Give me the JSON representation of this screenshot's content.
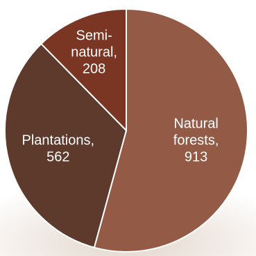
{
  "chart_data": {
    "type": "pie",
    "slices": [
      {
        "label_lines": [
          "Natural",
          "forests,",
          "913"
        ],
        "category": "Natural forests",
        "value": 913,
        "color": "#935a45"
      },
      {
        "label_lines": [
          "Plantations,",
          "562"
        ],
        "category": "Plantations",
        "value": 562,
        "color": "#5d3a2b"
      },
      {
        "label_lines": [
          "Semi-",
          "natural,",
          "208"
        ],
        "category": "Semi-natural",
        "value": 208,
        "color": "#7a3622"
      }
    ],
    "start_angle_deg": 0,
    "direction": "clockwise",
    "data_labels": "inside",
    "slice_border_color": "#ffffff"
  },
  "background": {
    "texture": "light stone",
    "color": "#efe9e3"
  }
}
